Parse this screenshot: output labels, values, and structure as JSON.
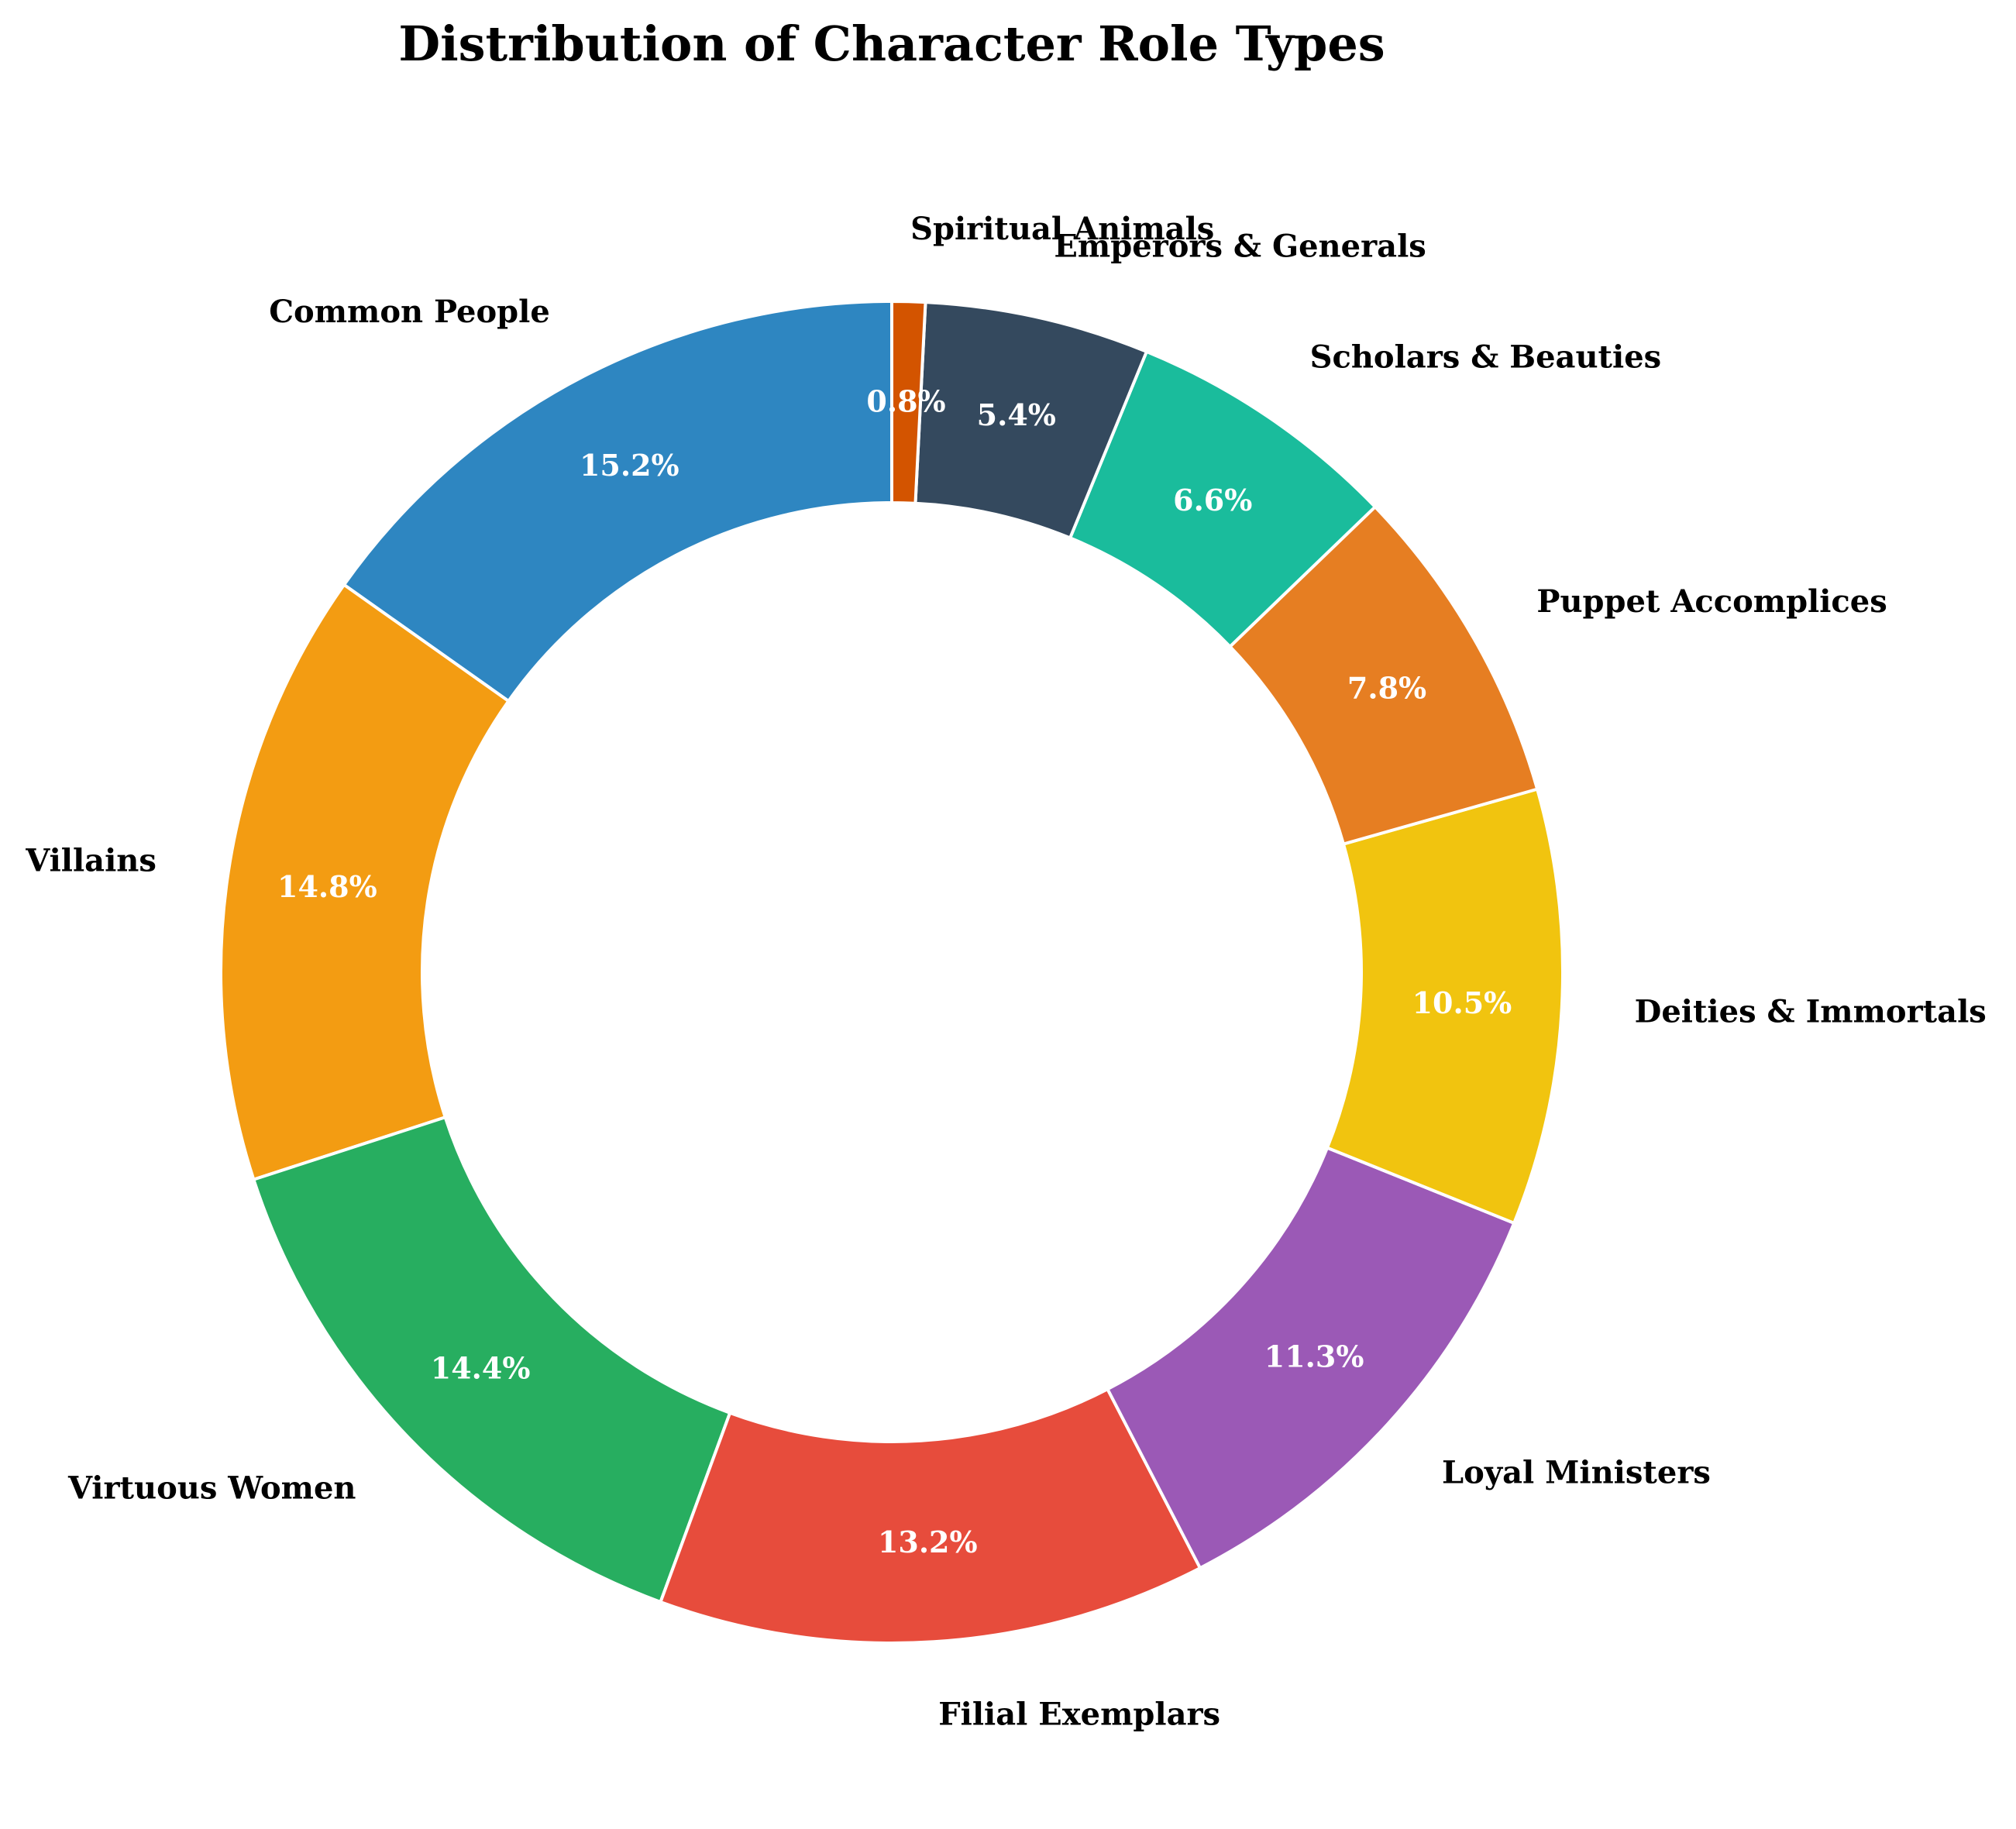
{
  "chart_data": {
    "type": "pie",
    "variant": "donut",
    "title": "Distribution of Character Role Types",
    "start_angle_deg": 90,
    "direction": "counterclockwise",
    "categories": [
      "Common People",
      "Villains",
      "Virtuous Women",
      "Filial Exemplars",
      "Loyal Ministers",
      "Deities & Immortals",
      "Puppet Accomplices",
      "Scholars & Beauties",
      "Emperors & Generals",
      "Spiritual Animals"
    ],
    "values": [
      15.2,
      14.8,
      14.4,
      13.2,
      11.3,
      10.5,
      7.8,
      6.6,
      5.4,
      0.8
    ],
    "value_labels": [
      "15.2%",
      "14.8%",
      "14.4%",
      "13.2%",
      "11.3%",
      "10.5%",
      "7.8%",
      "6.6%",
      "5.4%",
      "0.8%"
    ],
    "colors": [
      "#2e86c1",
      "#f39c12",
      "#27ae60",
      "#e74c3c",
      "#9b59b6",
      "#f1c40f",
      "#e67e22",
      "#1abc9c",
      "#34495e",
      "#d35400"
    ],
    "legend": "none"
  }
}
